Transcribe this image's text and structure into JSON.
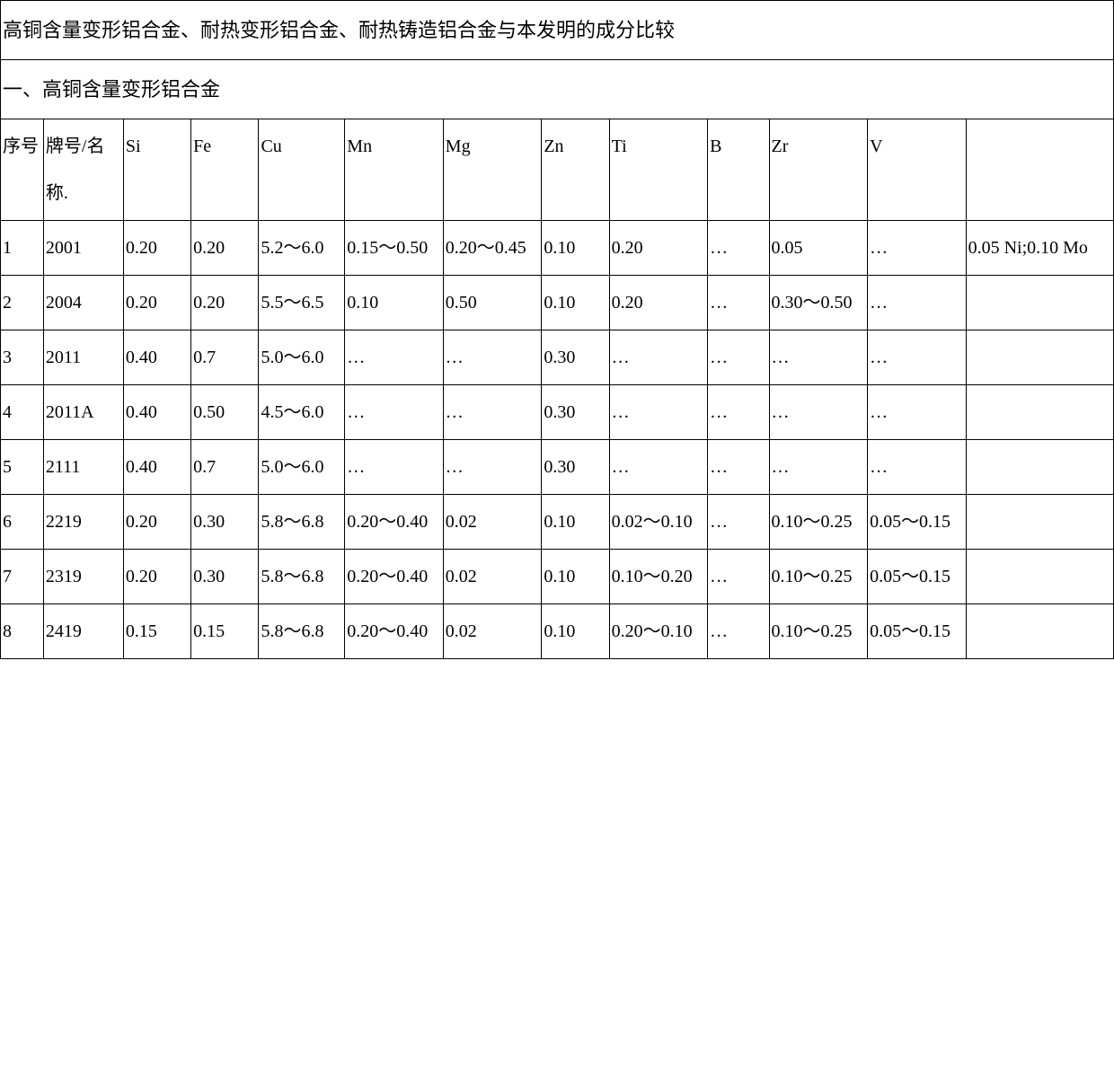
{
  "table": {
    "title": "高铜含量变形铝合金、耐热变形铝合金、耐热铸造铝合金与本发明的成分比较",
    "subtitle": "一、高铜含量变形铝合金",
    "columns": [
      "序号",
      "牌号/名称.",
      "Si",
      "Fe",
      "Cu",
      "Mn",
      "Mg",
      "Zn",
      "Ti",
      "B",
      "Zr",
      "V",
      ""
    ],
    "rows": [
      [
        "1",
        "2001",
        "0.20",
        "0.20",
        "5.2～6.0",
        "0.15～0.50",
        "0.20～0.45",
        "0.10",
        "0.20",
        "…",
        "0.05",
        "…",
        "0.05 Ni;0.10 Mo"
      ],
      [
        "2",
        "2004",
        "0.20",
        "0.20",
        "5.5～6.5",
        "0.10",
        "0.50",
        "0.10",
        "0.20",
        "…",
        "0.30～0.50",
        "…",
        ""
      ],
      [
        "3",
        "2011",
        "0.40",
        "0.7",
        "5.0～6.0",
        "…",
        "…",
        "0.30",
        "…",
        "…",
        "…",
        "…",
        ""
      ],
      [
        "4",
        "2011A",
        "0.40",
        "0.50",
        "4.5～6.0",
        "…",
        "…",
        "0.30",
        "…",
        "…",
        "…",
        "…",
        ""
      ],
      [
        "5",
        "2111",
        "0.40",
        "0.7",
        "5.0～6.0",
        "…",
        "…",
        "0.30",
        "…",
        "…",
        "…",
        "…",
        ""
      ],
      [
        "6",
        "2219",
        "0.20",
        "0.30",
        "5.8～6.8",
        "0.20～0.40",
        "0.02",
        "0.10",
        "0.02～0.10",
        "…",
        "0.10～0.25",
        "0.05～0.15",
        ""
      ],
      [
        "7",
        "2319",
        "0.20",
        "0.30",
        "5.8～6.8",
        "0.20～0.40",
        "0.02",
        "0.10",
        "0.10～0.20",
        "…",
        "0.10～0.25",
        "0.05～0.15",
        ""
      ],
      [
        "8",
        "2419",
        "0.15",
        "0.15",
        "5.8～6.8",
        "0.20～0.40",
        "0.02",
        "0.10",
        "0.20～0.10",
        "…",
        "0.10～0.25",
        "0.05～0.15",
        ""
      ]
    ],
    "background_color": "#ffffff",
    "border_color": "#000000",
    "text_color": "#000000",
    "font_family": "SimSun",
    "font_size": 20,
    "title_font_size": 22,
    "line_height": 2.6
  }
}
